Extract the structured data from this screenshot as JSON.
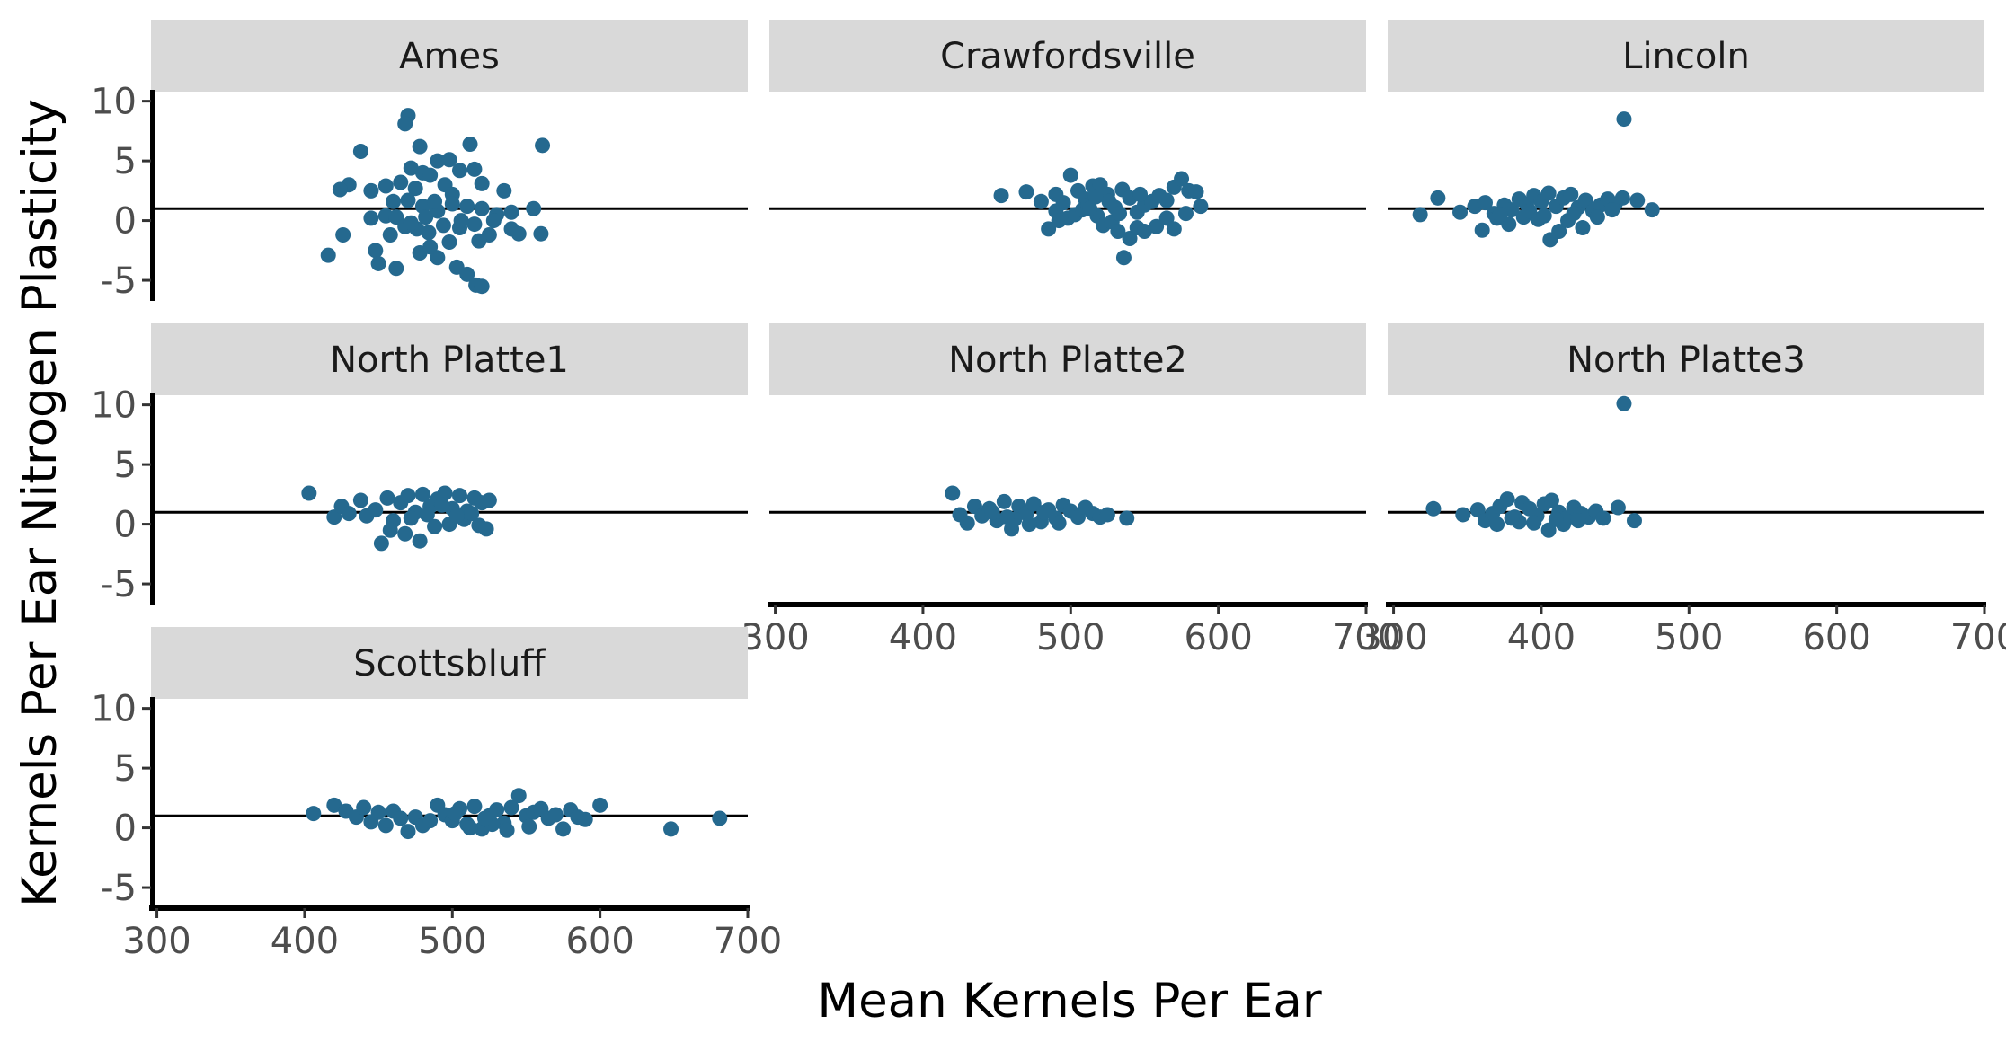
{
  "chart_data": {
    "type": "scatter",
    "layout": "faceted 3x3",
    "xlabel": "Mean Kernels Per Ear",
    "ylabel": "Kernels Per Ear Nitrogen Plasticity",
    "xlim": [
      296,
      700
    ],
    "ylim": [
      -6.5,
      10.8
    ],
    "x_ticks": [
      300,
      400,
      500,
      600,
      700
    ],
    "y_ticks": [
      -5,
      0,
      5,
      10
    ],
    "y_tick_labels": [
      "-5",
      "0",
      "5",
      "10"
    ],
    "reference_line_y": 1,
    "point_color": "#25698f",
    "strip_fill": "#d9d9d9",
    "grid": false,
    "facets": [
      {
        "name": "Ames",
        "points": [
          [
            470,
            8.8
          ],
          [
            468,
            8.1
          ],
          [
            478,
            6.2
          ],
          [
            512,
            6.4
          ],
          [
            561,
            6.3
          ],
          [
            438,
            5.8
          ],
          [
            490,
            5.0
          ],
          [
            498,
            5.1
          ],
          [
            505,
            4.2
          ],
          [
            515,
            4.3
          ],
          [
            472,
            4.4
          ],
          [
            480,
            4.0
          ],
          [
            485,
            3.8
          ],
          [
            430,
            3.0
          ],
          [
            424,
            2.6
          ],
          [
            445,
            2.5
          ],
          [
            455,
            2.9
          ],
          [
            465,
            3.2
          ],
          [
            475,
            2.7
          ],
          [
            495,
            3.0
          ],
          [
            500,
            2.2
          ],
          [
            520,
            3.1
          ],
          [
            535,
            2.5
          ],
          [
            460,
            1.6
          ],
          [
            470,
            1.7
          ],
          [
            480,
            1.2
          ],
          [
            490,
            0.8
          ],
          [
            500,
            1.4
          ],
          [
            510,
            1.2
          ],
          [
            520,
            1.0
          ],
          [
            530,
            0.5
          ],
          [
            540,
            0.7
          ],
          [
            555,
            1.0
          ],
          [
            445,
            0.2
          ],
          [
            455,
            0.4
          ],
          [
            462,
            0.3
          ],
          [
            468,
            -0.5
          ],
          [
            476,
            -0.7
          ],
          [
            484,
            -1.0
          ],
          [
            494,
            -0.4
          ],
          [
            505,
            -0.6
          ],
          [
            515,
            -0.3
          ],
          [
            525,
            -1.2
          ],
          [
            540,
            -0.7
          ],
          [
            545,
            -1.1
          ],
          [
            560,
            -1.1
          ],
          [
            426,
            -1.2
          ],
          [
            416,
            -2.9
          ],
          [
            448,
            -2.5
          ],
          [
            450,
            -3.6
          ],
          [
            462,
            -4.0
          ],
          [
            478,
            -2.7
          ],
          [
            490,
            -3.1
          ],
          [
            503,
            -3.9
          ],
          [
            510,
            -4.5
          ],
          [
            516,
            -5.4
          ],
          [
            520,
            -5.5
          ],
          [
            485,
            -2.2
          ],
          [
            498,
            -1.8
          ],
          [
            506,
            0.0
          ],
          [
            458,
            -1.2
          ],
          [
            472,
            -0.2
          ],
          [
            488,
            1.6
          ],
          [
            528,
            0.0
          ],
          [
            518,
            -1.7
          ],
          [
            482,
            0.3
          ]
        ]
      },
      {
        "name": "Crawfordsville",
        "points": [
          [
            453,
            2.1
          ],
          [
            470,
            2.4
          ],
          [
            480,
            1.6
          ],
          [
            490,
            0.8
          ],
          [
            495,
            1.5
          ],
          [
            500,
            3.8
          ],
          [
            505,
            2.5
          ],
          [
            510,
            1.8
          ],
          [
            515,
            2.9
          ],
          [
            520,
            3.0
          ],
          [
            525,
            2.2
          ],
          [
            530,
            1.1
          ],
          [
            535,
            2.6
          ],
          [
            540,
            1.9
          ],
          [
            545,
            0.7
          ],
          [
            550,
            1.3
          ],
          [
            555,
            1.6
          ],
          [
            560,
            2.1
          ],
          [
            565,
            1.7
          ],
          [
            570,
            2.8
          ],
          [
            575,
            3.5
          ],
          [
            580,
            2.5
          ],
          [
            585,
            2.4
          ],
          [
            588,
            1.2
          ],
          [
            485,
            -0.7
          ],
          [
            492,
            0.0
          ],
          [
            498,
            0.2
          ],
          [
            503,
            0.5
          ],
          [
            508,
            0.9
          ],
          [
            512,
            1.3
          ],
          [
            518,
            0.4
          ],
          [
            522,
            -0.4
          ],
          [
            528,
            -0.1
          ],
          [
            532,
            -0.9
          ],
          [
            536,
            -3.1
          ],
          [
            540,
            -1.5
          ],
          [
            545,
            -0.6
          ],
          [
            550,
            -0.9
          ],
          [
            558,
            -0.5
          ],
          [
            565,
            0.2
          ],
          [
            570,
            -0.7
          ],
          [
            578,
            0.6
          ],
          [
            490,
            2.2
          ],
          [
            513,
            1.0
          ],
          [
            526,
            1.6
          ],
          [
            547,
            2.2
          ],
          [
            533,
            0.6
          ],
          [
            517,
            2.0
          ]
        ]
      },
      {
        "name": "Lincoln",
        "points": [
          [
            456,
            8.5
          ],
          [
            318,
            0.5
          ],
          [
            330,
            1.9
          ],
          [
            345,
            0.7
          ],
          [
            355,
            1.2
          ],
          [
            362,
            1.5
          ],
          [
            368,
            0.6
          ],
          [
            375,
            1.3
          ],
          [
            380,
            0.9
          ],
          [
            385,
            1.8
          ],
          [
            390,
            1.4
          ],
          [
            395,
            2.1
          ],
          [
            400,
            1.6
          ],
          [
            405,
            2.3
          ],
          [
            410,
            1.2
          ],
          [
            415,
            1.9
          ],
          [
            420,
            2.2
          ],
          [
            425,
            1.1
          ],
          [
            430,
            1.7
          ],
          [
            435,
            0.8
          ],
          [
            440,
            1.3
          ],
          [
            445,
            1.8
          ],
          [
            450,
            1.4
          ],
          [
            455,
            1.9
          ],
          [
            465,
            1.7
          ],
          [
            475,
            0.9
          ],
          [
            360,
            -0.8
          ],
          [
            370,
            0.2
          ],
          [
            378,
            -0.3
          ],
          [
            388,
            0.3
          ],
          [
            398,
            0.1
          ],
          [
            406,
            -1.6
          ],
          [
            412,
            -0.9
          ],
          [
            418,
            0.0
          ],
          [
            428,
            -0.6
          ],
          [
            438,
            0.3
          ],
          [
            372,
            0.5
          ],
          [
            392,
            0.8
          ],
          [
            402,
            0.4
          ],
          [
            422,
            0.6
          ],
          [
            448,
            0.9
          ]
        ]
      },
      {
        "name": "North Platte1",
        "points": [
          [
            403,
            2.6
          ],
          [
            420,
            0.6
          ],
          [
            425,
            1.5
          ],
          [
            430,
            0.9
          ],
          [
            438,
            2.0
          ],
          [
            442,
            0.7
          ],
          [
            448,
            1.2
          ],
          [
            452,
            -1.6
          ],
          [
            456,
            2.2
          ],
          [
            460,
            0.3
          ],
          [
            465,
            1.8
          ],
          [
            470,
            2.4
          ],
          [
            475,
            1.0
          ],
          [
            480,
            2.5
          ],
          [
            485,
            1.5
          ],
          [
            490,
            2.1
          ],
          [
            495,
            2.6
          ],
          [
            500,
            1.3
          ],
          [
            505,
            2.4
          ],
          [
            510,
            1.1
          ],
          [
            515,
            2.2
          ],
          [
            520,
            1.8
          ],
          [
            525,
            2.0
          ],
          [
            458,
            -0.5
          ],
          [
            468,
            -0.8
          ],
          [
            478,
            -1.4
          ],
          [
            488,
            -0.2
          ],
          [
            498,
            0.0
          ],
          [
            508,
            0.4
          ],
          [
            518,
            -0.1
          ],
          [
            523,
            -0.4
          ],
          [
            472,
            0.5
          ],
          [
            483,
            0.8
          ],
          [
            493,
            1.6
          ],
          [
            503,
            0.7
          ],
          [
            513,
            0.9
          ]
        ]
      },
      {
        "name": "North Platte2",
        "points": [
          [
            420,
            2.6
          ],
          [
            425,
            0.8
          ],
          [
            430,
            0.1
          ],
          [
            435,
            1.5
          ],
          [
            440,
            0.7
          ],
          [
            445,
            1.3
          ],
          [
            450,
            0.3
          ],
          [
            455,
            1.9
          ],
          [
            460,
            -0.4
          ],
          [
            465,
            1.5
          ],
          [
            470,
            0.9
          ],
          [
            475,
            1.7
          ],
          [
            480,
            0.2
          ],
          [
            485,
            1.2
          ],
          [
            490,
            0.5
          ],
          [
            495,
            1.6
          ],
          [
            500,
            1.1
          ],
          [
            505,
            0.6
          ],
          [
            510,
            1.4
          ],
          [
            515,
            0.9
          ],
          [
            520,
            0.6
          ],
          [
            525,
            0.8
          ],
          [
            538,
            0.5
          ],
          [
            462,
            0.4
          ],
          [
            472,
            0.0
          ],
          [
            482,
            1.0
          ],
          [
            492,
            0.1
          ],
          [
            447,
            1.0
          ],
          [
            457,
            0.6
          ]
        ]
      },
      {
        "name": "North Platte3",
        "points": [
          [
            456,
            10.1
          ],
          [
            327,
            1.3
          ],
          [
            347,
            0.8
          ],
          [
            357,
            1.2
          ],
          [
            362,
            0.3
          ],
          [
            367,
            0.9
          ],
          [
            372,
            1.5
          ],
          [
            377,
            2.1
          ],
          [
            382,
            0.6
          ],
          [
            387,
            1.8
          ],
          [
            392,
            1.3
          ],
          [
            397,
            0.7
          ],
          [
            402,
            1.7
          ],
          [
            407,
            2.0
          ],
          [
            412,
            1.0
          ],
          [
            417,
            0.5
          ],
          [
            422,
            1.4
          ],
          [
            427,
            0.9
          ],
          [
            432,
            0.6
          ],
          [
            437,
            1.1
          ],
          [
            442,
            0.5
          ],
          [
            452,
            1.4
          ],
          [
            463,
            0.3
          ],
          [
            370,
            0.0
          ],
          [
            385,
            0.2
          ],
          [
            395,
            0.1
          ],
          [
            405,
            -0.5
          ],
          [
            415,
            0.0
          ],
          [
            425,
            0.3
          ],
          [
            380,
            0.5
          ],
          [
            410,
            0.4
          ]
        ]
      },
      {
        "name": "Scottsbluff",
        "points": [
          [
            406,
            1.2
          ],
          [
            420,
            1.9
          ],
          [
            428,
            1.4
          ],
          [
            435,
            0.9
          ],
          [
            440,
            1.7
          ],
          [
            445,
            0.5
          ],
          [
            450,
            1.3
          ],
          [
            455,
            0.2
          ],
          [
            460,
            1.4
          ],
          [
            465,
            0.8
          ],
          [
            470,
            -0.3
          ],
          [
            475,
            0.9
          ],
          [
            480,
            0.2
          ],
          [
            485,
            0.6
          ],
          [
            490,
            1.9
          ],
          [
            495,
            1.1
          ],
          [
            500,
            0.6
          ],
          [
            505,
            1.6
          ],
          [
            510,
            0.3
          ],
          [
            515,
            1.8
          ],
          [
            520,
            -0.1
          ],
          [
            525,
            1.0
          ],
          [
            530,
            1.5
          ],
          [
            535,
            0.4
          ],
          [
            540,
            1.7
          ],
          [
            545,
            2.7
          ],
          [
            550,
            1.0
          ],
          [
            555,
            1.3
          ],
          [
            560,
            1.6
          ],
          [
            565,
            0.8
          ],
          [
            570,
            1.1
          ],
          [
            575,
            -0.1
          ],
          [
            580,
            1.5
          ],
          [
            585,
            0.9
          ],
          [
            590,
            0.7
          ],
          [
            600,
            1.9
          ],
          [
            648,
            -0.1
          ],
          [
            681,
            0.8
          ],
          [
            512,
            0.0
          ],
          [
            527,
            0.3
          ],
          [
            537,
            -0.2
          ],
          [
            552,
            0.1
          ],
          [
            522,
            0.8
          ],
          [
            502,
            1.2
          ]
        ]
      }
    ]
  }
}
